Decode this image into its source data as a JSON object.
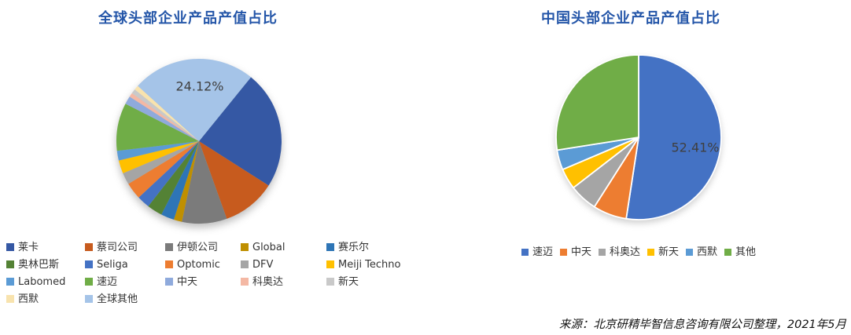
{
  "left_chart": {
    "title": "全球头部企业产品产值占比",
    "data_label": "24.12%"
  },
  "right_chart": {
    "title": "中国头部企业产品产值占比",
    "data_label": "52.41%"
  },
  "source": "来源：北京研精毕智信息咨询有限公司整理，2021年5月",
  "colors": {
    "title": "#2355A8",
    "data_label": "#3F3F3F",
    "legend_text": "#333333",
    "source_text": "#111111"
  },
  "chart_data": [
    {
      "type": "pie",
      "title": "全球头部企业产品产值占比",
      "start_angle_deg": 39,
      "clockwise": true,
      "legend_position": "bottom-grid-5-columns",
      "labeled_values": [
        {
          "name": "全球其他",
          "text": "24.12%"
        }
      ],
      "values_note": "Only 24.12% is labeled in the image; other values estimated from slice angles",
      "series": [
        {
          "name": "莱卡",
          "value": 23.2,
          "color": "#3558A4"
        },
        {
          "name": "蔡司公司",
          "value": 10.5,
          "color": "#C75B1E"
        },
        {
          "name": "伊顿公司",
          "value": 8.8,
          "color": "#7B7B7B"
        },
        {
          "name": "Global",
          "value": 1.6,
          "color": "#BF8F00"
        },
        {
          "name": "赛乐尔",
          "value": 2.6,
          "color": "#2E75B6"
        },
        {
          "name": "奥林巴斯",
          "value": 3.0,
          "color": "#548235"
        },
        {
          "name": "Seliga",
          "value": 2.5,
          "color": "#4472C4"
        },
        {
          "name": "Optomic",
          "value": 3.3,
          "color": "#ED7D31"
        },
        {
          "name": "DFV",
          "value": 2.3,
          "color": "#A5A5A5"
        },
        {
          "name": "Meiji Techno",
          "value": 2.6,
          "color": "#FFC000"
        },
        {
          "name": "Labomed",
          "value": 1.9,
          "color": "#5B9BD5"
        },
        {
          "name": "速迈",
          "value": 9.38,
          "color": "#70AD47"
        },
        {
          "name": "中天",
          "value": 1.6,
          "color": "#8FAADC"
        },
        {
          "name": "科奥达",
          "value": 0.8,
          "color": "#F4B8A4"
        },
        {
          "name": "新天",
          "value": 0.9,
          "color": "#C9C9C9"
        },
        {
          "name": "西默",
          "value": 0.9,
          "color": "#F8E3AE"
        },
        {
          "name": "全球其他",
          "value": 24.12,
          "color": "#A5C4E8"
        }
      ]
    },
    {
      "type": "pie",
      "title": "中国头部企业产品产值占比",
      "start_angle_deg": 0,
      "clockwise": true,
      "slice_border": "#FFFFFF",
      "legend_position": "bottom-single-row",
      "labeled_values": [
        {
          "name": "速迈",
          "text": "52.41%"
        }
      ],
      "values_note": "Only 52.41% is labeled in the image; other values estimated from slice angles",
      "series": [
        {
          "name": "速迈",
          "value": 52.41,
          "color": "#4472C4"
        },
        {
          "name": "中天",
          "value": 6.6,
          "color": "#ED7D31"
        },
        {
          "name": "科奥达",
          "value": 5.5,
          "color": "#A5A5A5"
        },
        {
          "name": "新天",
          "value": 4.1,
          "color": "#FFC000"
        },
        {
          "name": "西默",
          "value": 3.9,
          "color": "#5B9BD5"
        },
        {
          "name": "其他",
          "value": 27.49,
          "color": "#70AD47"
        }
      ]
    }
  ]
}
